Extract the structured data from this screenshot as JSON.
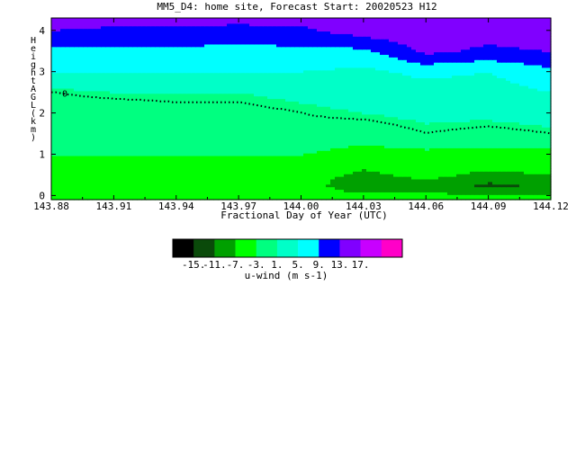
{
  "chart_data": {
    "type": "heatmap",
    "title": "MM5_D4: home site,  Forecast Start: 20020523 H12",
    "xlabel": "Fractional Day of Year (UTC)",
    "ylabel": "Height AGL (km)",
    "xlim": [
      143.88,
      144.12
    ],
    "ylim": [
      -0.1,
      4.3
    ],
    "x_ticks": [
      "143.88",
      "143.91",
      "143.94",
      "143.97",
      "144.00",
      "144.03",
      "144.06",
      "144.09",
      "144.12"
    ],
    "y_ticks": [
      "0",
      "1",
      "2",
      "3",
      "4"
    ],
    "colorbar": {
      "label": "u-wind (m s-1)",
      "tick_labels": [
        "-15.",
        "-11.",
        "-7.",
        "-3.",
        "1.",
        "5.",
        "9.",
        "13.",
        "17."
      ],
      "colors": [
        "#000000",
        "#0a4a0a",
        "#00a000",
        "#00ff00",
        "#00ff80",
        "#00ffc8",
        "#00ffff",
        "#0000ff",
        "#8000ff",
        "#c800ff",
        "#ff00c8"
      ]
    },
    "contour": {
      "level": "0",
      "style": "dotted"
    },
    "x": [
      143.88,
      143.91,
      143.94,
      143.97,
      144.0,
      144.03,
      144.06,
      144.09,
      144.12
    ],
    "y": [
      0.0,
      0.25,
      0.5,
      1.0,
      1.5,
      2.0,
      2.5,
      3.0,
      3.5,
      4.0,
      4.3
    ],
    "values": [
      [
        -4,
        -4,
        -4,
        -4,
        -5,
        -6,
        -6,
        -7,
        -7
      ],
      [
        -4,
        -4,
        -4,
        -4,
        -5,
        -10,
        -8,
        -12,
        -10
      ],
      [
        -4,
        -4,
        -4,
        -4,
        -5,
        -8,
        -6,
        -8,
        -7
      ],
      [
        -3,
        -3,
        -3,
        -3,
        -3,
        -4,
        -4,
        -4,
        -4
      ],
      [
        -3,
        -2,
        -2,
        -2,
        -1,
        -2,
        0,
        -1,
        0
      ],
      [
        -2,
        -2,
        -1,
        -1,
        0,
        1,
        2,
        2,
        3
      ],
      [
        0,
        1,
        1,
        1,
        2,
        3,
        3,
        3,
        5
      ],
      [
        5,
        5,
        5,
        5,
        5,
        4,
        6,
        5,
        8
      ],
      [
        8,
        8,
        8,
        8,
        8,
        8,
        14,
        12,
        13
      ],
      [
        13,
        12,
        12,
        11,
        12,
        15,
        16,
        15,
        17
      ],
      [
        16,
        15,
        15,
        15,
        15,
        16,
        16,
        15,
        17
      ]
    ]
  }
}
